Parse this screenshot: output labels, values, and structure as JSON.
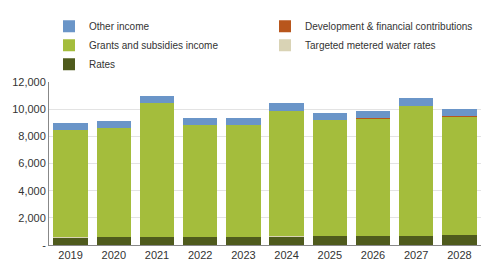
{
  "chart_data": {
    "type": "bar",
    "stacked": true,
    "grid": true,
    "legend": "top",
    "categories": [
      "2019",
      "2020",
      "2021",
      "2022",
      "2023",
      "2024",
      "2025",
      "2026",
      "2027",
      "2028"
    ],
    "series": [
      {
        "name": "Rates",
        "color": "#4f5b1d",
        "values": [
          550,
          560,
          570,
          600,
          610,
          620,
          630,
          640,
          650,
          700
        ]
      },
      {
        "name": "Targeted metered water rates",
        "color": "#d9d3b5",
        "values": [
          10,
          10,
          10,
          10,
          10,
          10,
          10,
          10,
          10,
          10
        ]
      },
      {
        "name": "Grants and subsidies income",
        "color": "#a4bd3c",
        "values": [
          7890,
          8030,
          9870,
          8240,
          8220,
          9220,
          8560,
          8650,
          9590,
          8740
        ]
      },
      {
        "name": "Development & financial contributions",
        "color": "#b8561c",
        "values": [
          20,
          20,
          20,
          20,
          20,
          20,
          20,
          20,
          20,
          20
        ]
      },
      {
        "name": "Other income",
        "color": "#6a95c8",
        "values": [
          530,
          530,
          530,
          480,
          480,
          580,
          530,
          580,
          530,
          530
        ]
      }
    ],
    "ylim": [
      0,
      12000
    ],
    "yticks": [
      {
        "value": 0,
        "label": "-"
      },
      {
        "value": 2000,
        "label": "2,000"
      },
      {
        "value": 4000,
        "label": "4,000"
      },
      {
        "value": 6000,
        "label": "6,000"
      },
      {
        "value": 8000,
        "label": "8,000"
      },
      {
        "value": 10000,
        "label": "10,000"
      },
      {
        "value": 12000,
        "label": "12,000"
      }
    ]
  }
}
